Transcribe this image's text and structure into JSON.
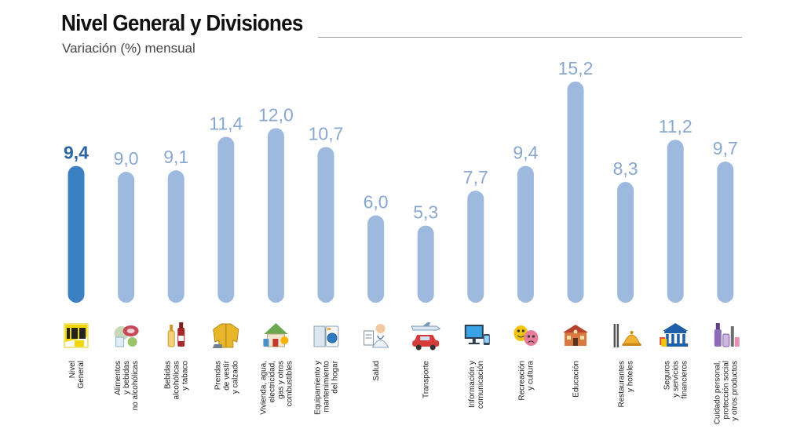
{
  "header": {
    "title": "Nivel General y Divisiones",
    "subtitle": "Variación (%) mensual"
  },
  "colors": {
    "highlight_bar": "#3a80c2",
    "bar": "#9dbade",
    "highlight_value": "#2d64a3",
    "value": "#8aa8cf"
  },
  "chart_data": {
    "type": "bar",
    "title": "Nivel General y Divisiones",
    "subtitle": "Variación (%) mensual",
    "xlabel": "",
    "ylabel": "",
    "ylim": [
      0,
      15.2
    ],
    "grid": false,
    "legend": "none",
    "categories": [
      [
        "Nivel",
        "General"
      ],
      [
        "Alimentos",
        "y bebidas",
        "no alcohólicas"
      ],
      [
        "Bebidas",
        "alcohólicas",
        "y tabaco"
      ],
      [
        "Prendas",
        "de vestir",
        "y calzado"
      ],
      [
        "Vivienda, agua,",
        "electricidad,",
        "gas y otros",
        "combustibles"
      ],
      [
        "Equipamiento y",
        "mantenimiento",
        "del hogar"
      ],
      [
        "Salud"
      ],
      [
        "Transporte"
      ],
      [
        "Información y",
        "comunicación"
      ],
      [
        "Recreación",
        "y cultura"
      ],
      [
        "Educación"
      ],
      [
        "Restaurantes",
        "y hoteles"
      ],
      [
        "Seguros",
        "y servicios",
        "financieros"
      ],
      [
        "Cuidado personal,",
        "protección social",
        "y otros productos"
      ]
    ],
    "values": [
      9.4,
      9.0,
      9.1,
      11.4,
      12.0,
      10.7,
      6.0,
      5.3,
      7.7,
      9.4,
      15.2,
      8.3,
      11.2,
      9.7
    ],
    "value_labels": [
      "9,4",
      "9,0",
      "9,1",
      "11,4",
      "12,0",
      "10,7",
      "6,0",
      "5,3",
      "7,7",
      "9,4",
      "15,2",
      "8,3",
      "11,2",
      "9,7"
    ],
    "icons": [
      "ipc-logo-icon",
      "food-basket-icon",
      "bottles-icon",
      "jacket-icon",
      "house-icon",
      "washing-machine-icon",
      "doctor-icon",
      "plane-car-icon",
      "computer-icon",
      "theater-masks-icon",
      "school-icon",
      "dining-icon",
      "bank-icon",
      "cosmetics-icon"
    ],
    "highlight_index": 0
  }
}
